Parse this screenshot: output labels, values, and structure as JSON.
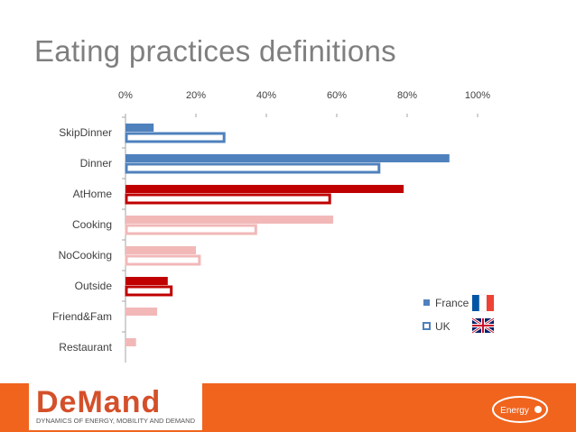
{
  "page": {
    "title": "Eating practices definitions"
  },
  "chart_data": {
    "type": "bar",
    "orientation": "horizontal",
    "categories": [
      "SkipDinner",
      "Dinner",
      "AtHome",
      "Cooking",
      "NoCooking",
      "Outside",
      "Friend&Fam",
      "Restaurant"
    ],
    "x_tick_labels": [
      "0%",
      "20%",
      "40%",
      "60%",
      "80%",
      "100%"
    ],
    "xlim": [
      0,
      100
    ],
    "x_ticks": [
      0,
      20,
      40,
      60,
      80,
      100
    ],
    "series": [
      {
        "name": "France",
        "values": [
          8,
          92,
          79,
          59,
          20,
          12,
          9,
          3
        ]
      },
      {
        "name": "UK",
        "values": [
          28,
          72,
          58,
          37,
          21,
          13,
          0,
          0
        ]
      }
    ],
    "bar_colors": [
      "#4f81bd",
      "#4f81bd",
      "#c00000",
      "#f2b8b8",
      "#f2b8b8",
      "#c00000",
      "#f2b8b8",
      "#f2b8b8"
    ],
    "axis_position": "top",
    "grid": false,
    "legend_position": "bottom-right",
    "legend_icons": [
      "flag-france-icon",
      "flag-uk-icon"
    ]
  },
  "footer": {
    "logo_text": "DeMand",
    "logo_subtitle": "DYNAMICS OF ENERGY, MOBILITY AND DEMAND",
    "energy_logo_label": "Energy",
    "accent_color": "#f0641e"
  }
}
